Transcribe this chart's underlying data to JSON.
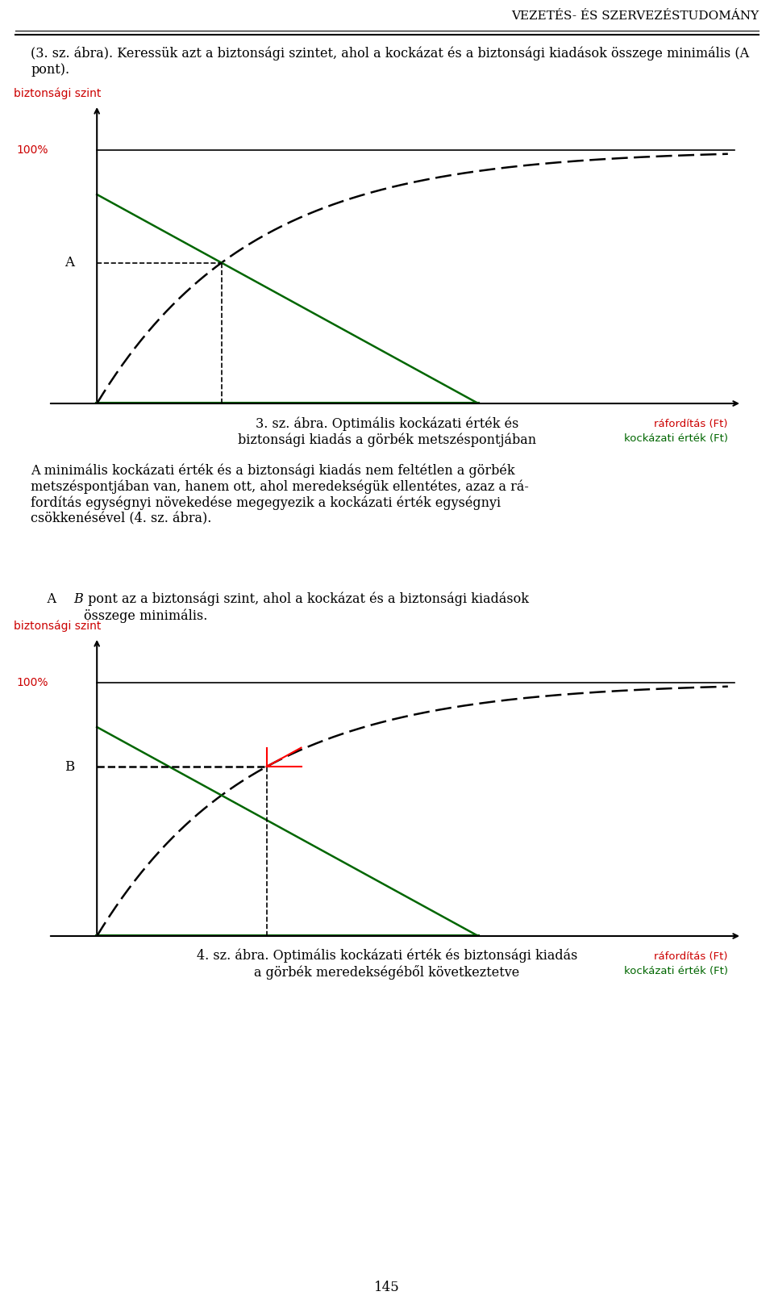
{
  "page_title": "VEZETÉS- ÉS SZERVEZÉSTUDOMÁNY",
  "page_number": "145",
  "para1": "(3. sz. ábra). Keressük azt a biztonsági szintet, ahol a kockázat és a biztonsági kiadások összege minimális (A pont).",
  "fig1_ylabel": "biztonsági szint",
  "fig1_100pct": "100%",
  "fig1_point_label": "A",
  "fig1_xaxis_label1": "ráfordítás (Ft)",
  "fig1_xaxis_label2": "kockázati érték (Ft)",
  "fig1_caption": "3. sz. ábra. Optimális kockázati érték és\nbiztonsági kiadás a görbék metszéspontjában",
  "para2_parts": [
    "A minimális kockázati érték és a biztonsági kiadás nem feltétlen a görbék metszéspontjában van, hanem ott, ahol meredekségük ellentétes, azaz a ráfordítás egységnyi növekedése megegyezik a kockázati érték egységnyi csökkenésével (4. sz. ábra).",
    "A ",
    "B",
    " pont az a biztonsági szint, ahol a kockázat és a biztonsági kiadások összege minimális."
  ],
  "fig2_ylabel": "biztonsági szint",
  "fig2_100pct": "100%",
  "fig2_point_label": "B",
  "fig2_xaxis_label1": "ráfordítás (Ft)",
  "fig2_xaxis_label2": "kockázati érték (Ft)",
  "fig2_caption": "4. sz. ábra. Optimális kockázati érték és biztonsági kiadás\na görbék meredekségéből következtetve",
  "color_red": "#cc0000",
  "color_green": "#006600",
  "color_black": "#000000",
  "color_dkgreen": "#007700",
  "bg_color": "#ffffff"
}
